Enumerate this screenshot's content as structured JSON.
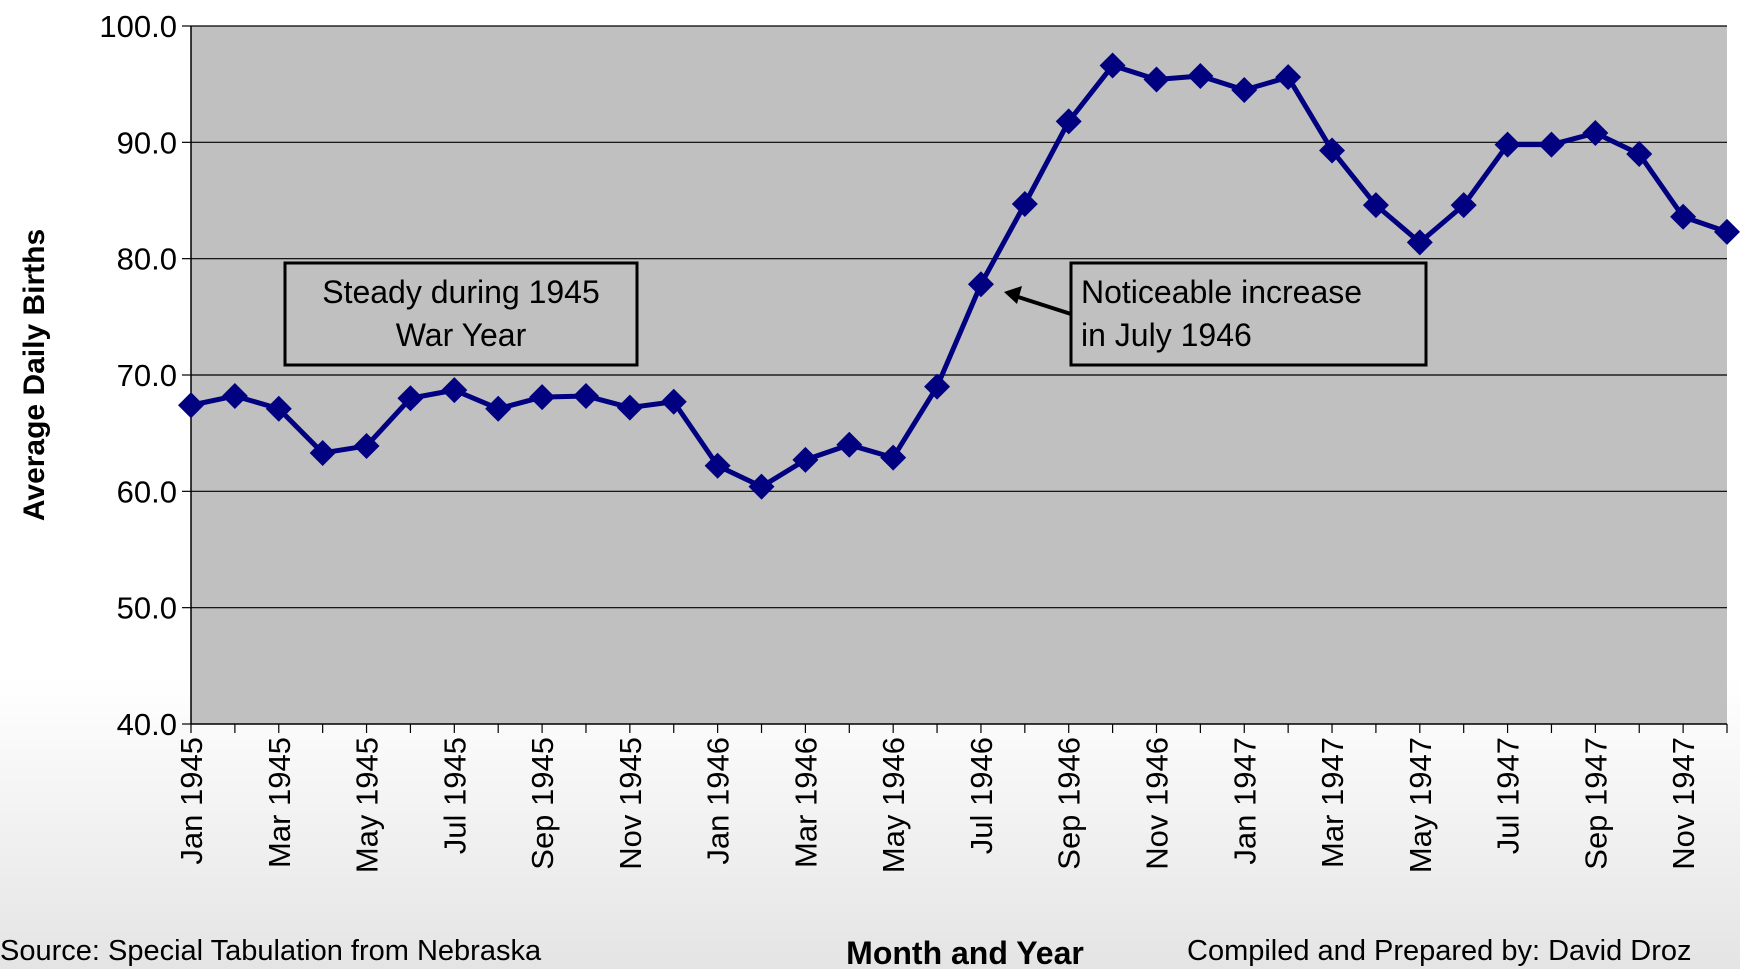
{
  "chart_data": {
    "type": "line",
    "y_label": "Average Daily Births",
    "x_label": "Month and Year",
    "source": "Source: Special Tabulation from Nebraska",
    "credit": "Compiled and Prepared by: David Droz",
    "categories": [
      "Jan 1945",
      null,
      "Mar 1945",
      null,
      "May 1945",
      null,
      "Jul 1945",
      null,
      "Sep 1945",
      null,
      "Nov 1945",
      null,
      "Jan 1946",
      null,
      "Mar 1946",
      null,
      "May 1946",
      null,
      "Jul 1946",
      null,
      "Sep 1946",
      null,
      "Nov 1946",
      null,
      "Jan 1947",
      null,
      "Mar 1947",
      null,
      "May 1947",
      null,
      "Jul 1947",
      null,
      "Sep 1947",
      null,
      "Nov 1947",
      null
    ],
    "series": [
      {
        "name": "Average Daily Births",
        "color": "#000080",
        "values": [
          67.4,
          68.2,
          67.1,
          63.3,
          63.9,
          68.0,
          68.7,
          67.1,
          68.1,
          68.2,
          67.2,
          67.7,
          62.2,
          60.4,
          62.7,
          64.0,
          62.9,
          69.0,
          77.8,
          84.7,
          91.8,
          96.6,
          95.4,
          95.7,
          94.5,
          95.6,
          89.3,
          84.6,
          81.4,
          84.6,
          89.8,
          89.8,
          90.8,
          89.0,
          83.6,
          82.3
        ]
      }
    ],
    "ylim": [
      40,
      100
    ],
    "yticks": [
      {
        "value": 40,
        "label": "40.0"
      },
      {
        "value": 50,
        "label": "50.0"
      },
      {
        "value": 60,
        "label": "60.0"
      },
      {
        "value": 70,
        "label": "70.0"
      },
      {
        "value": 80,
        "label": "80.0"
      },
      {
        "value": 90,
        "label": "90.0"
      },
      {
        "value": 100,
        "label": "100.0"
      }
    ],
    "grid": true,
    "plot_background": "#c0c0c0",
    "annotations": [
      {
        "lines": [
          "Steady during 1945",
          "War Year"
        ]
      },
      {
        "lines": [
          "Noticeable increase",
          "in July 1946"
        ]
      }
    ]
  }
}
